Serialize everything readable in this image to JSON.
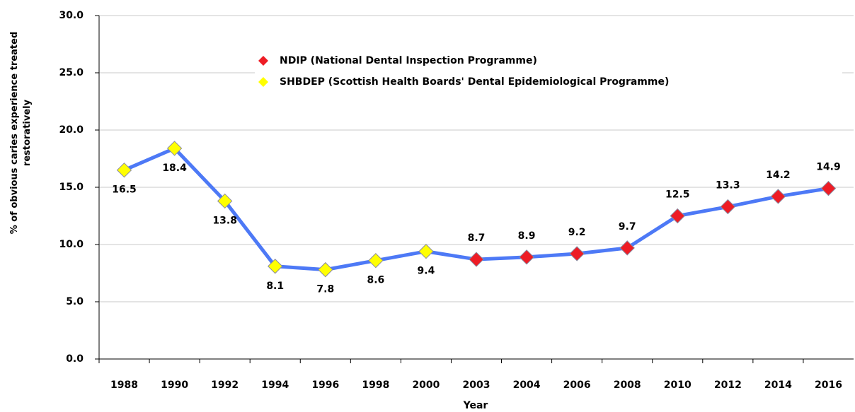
{
  "chart_data": {
    "type": "line",
    "x_label": "Year",
    "y_label": "% of obvious caries experience treated restoratively",
    "categories": [
      "1988",
      "1990",
      "1992",
      "1994",
      "1996",
      "1998",
      "2000",
      "2003",
      "2004",
      "2006",
      "2008",
      "2010",
      "2012",
      "2014",
      "2016"
    ],
    "line_color": "#4d79f6",
    "series": [
      {
        "name": "NDIP (National Dental Inspection Programme)",
        "color": "#ee1c25",
        "values": [
          null,
          null,
          null,
          null,
          null,
          null,
          null,
          8.7,
          8.9,
          9.2,
          9.7,
          12.5,
          13.3,
          14.2,
          14.9
        ]
      },
      {
        "name": "SHBDEP (Scottish Health Boards' Dental Epidemiological Programme)",
        "color": "#ffff00",
        "values": [
          16.5,
          18.4,
          13.8,
          8.1,
          7.8,
          8.6,
          9.4,
          null,
          null,
          null,
          null,
          null,
          null,
          null,
          null
        ]
      }
    ],
    "ylim": [
      0,
      30
    ],
    "yticks": [
      {
        "value": 0,
        "label": "0.0"
      },
      {
        "value": 5,
        "label": "5.0"
      },
      {
        "value": 10,
        "label": "10.0"
      },
      {
        "value": 15,
        "label": "15.0"
      },
      {
        "value": 20,
        "label": "20.0"
      },
      {
        "value": 25,
        "label": "25.0"
      },
      {
        "value": 30,
        "label": "30.0"
      }
    ],
    "grid": true,
    "legend": "top"
  }
}
